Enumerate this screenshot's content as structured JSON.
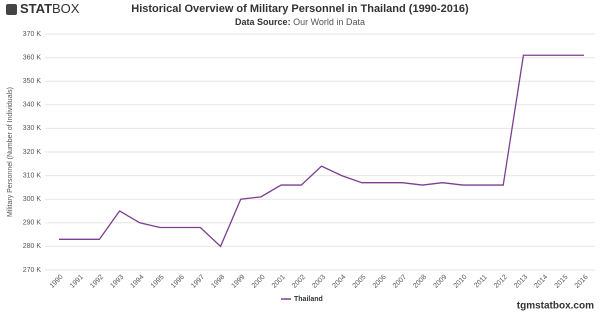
{
  "brand": {
    "bold": "STAT",
    "light": "BOX"
  },
  "footer": "tgmstatbox.com",
  "chart_data": {
    "type": "line",
    "title": "Historical Overview of Military Personnel in Thailand (1990-2016)",
    "subtitle_label": "Data Source:",
    "subtitle": "Our World in Data",
    "y_label": "Military Personnel (Number of Individuals)",
    "categories": [
      "1990",
      "1991",
      "1992",
      "1993",
      "1994",
      "1995",
      "1996",
      "1997",
      "1998",
      "1999",
      "2000",
      "2001",
      "2002",
      "2003",
      "2004",
      "2005",
      "2006",
      "2007",
      "2008",
      "2009",
      "2010",
      "2011",
      "2012",
      "2013",
      "2014",
      "2015",
      "2016"
    ],
    "series": [
      {
        "name": "Thailand",
        "color": "#7b3f8f",
        "values": [
          283000,
          283000,
          283000,
          295000,
          290000,
          288000,
          288000,
          288000,
          280000,
          300000,
          301000,
          306000,
          306000,
          314000,
          310000,
          307000,
          307000,
          307000,
          306000,
          307000,
          306000,
          306000,
          306000,
          361000,
          361000,
          361000,
          361000
        ]
      }
    ],
    "ylim": [
      270000,
      370000
    ],
    "yticks": [
      {
        "value": 270000,
        "label": "270 K"
      },
      {
        "value": 280000,
        "label": "280 K"
      },
      {
        "value": 290000,
        "label": "290 K"
      },
      {
        "value": 300000,
        "label": "300 K"
      },
      {
        "value": 310000,
        "label": "310 K"
      },
      {
        "value": 320000,
        "label": "320 K"
      },
      {
        "value": 330000,
        "label": "330 K"
      },
      {
        "value": 340000,
        "label": "340 K"
      },
      {
        "value": 350000,
        "label": "350 K"
      },
      {
        "value": 360000,
        "label": "360 K"
      },
      {
        "value": 370000,
        "label": "370 K"
      }
    ],
    "grid": true
  }
}
